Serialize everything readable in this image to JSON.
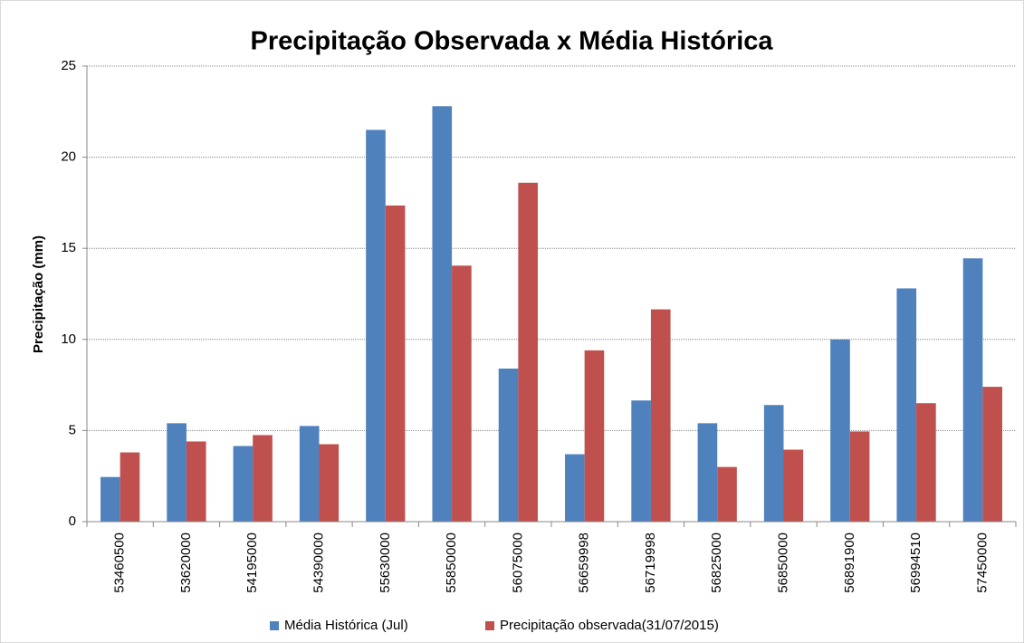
{
  "chart_data": {
    "type": "bar",
    "title": "Precipitação Observada x Média Histórica",
    "y_label": "Precipitação (mm)",
    "categories": [
      "53460500",
      "53620000",
      "54195000",
      "54390000",
      "55630000",
      "55850000",
      "56075000",
      "56659998",
      "56719998",
      "56825000",
      "56850000",
      "56891900",
      "56994510",
      "57450000"
    ],
    "series": [
      {
        "name": "Média Histórica (Jul)",
        "color": "#4f81bd",
        "values": [
          2.45,
          5.4,
          4.15,
          5.25,
          21.5,
          22.8,
          8.4,
          3.7,
          6.65,
          5.4,
          6.4,
          10.0,
          12.8,
          14.45
        ]
      },
      {
        "name": "Precipitação observada(31/07/2015)",
        "color": "#c0504d",
        "values": [
          3.8,
          4.4,
          4.75,
          4.25,
          17.35,
          14.05,
          18.6,
          9.4,
          11.65,
          3.0,
          3.95,
          4.95,
          6.5,
          7.4
        ]
      }
    ],
    "ylim": [
      0,
      25
    ],
    "yticks": [
      0,
      5,
      10,
      15,
      20,
      25
    ],
    "grid": true,
    "legend": "bottom"
  }
}
